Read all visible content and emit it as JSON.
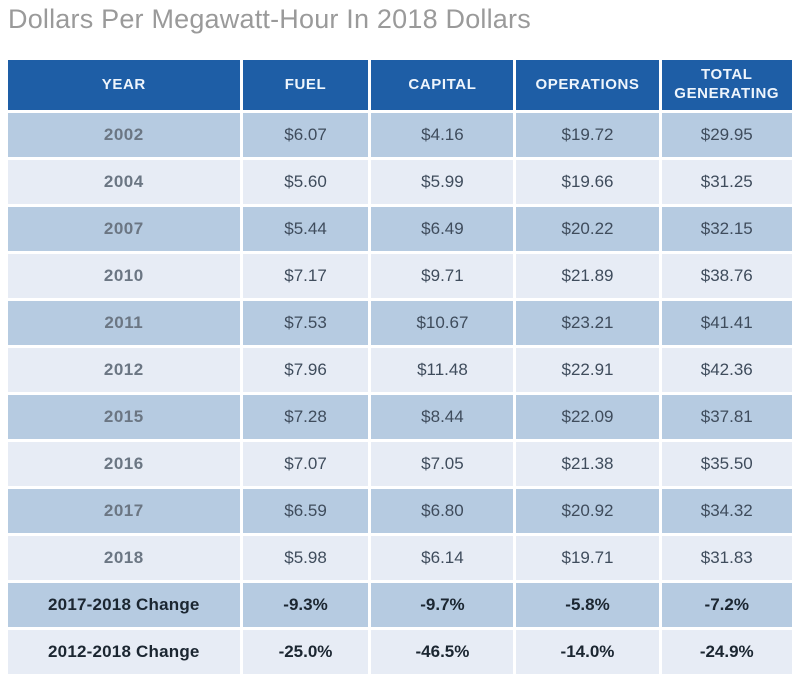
{
  "title": "Dollars Per Megawatt-Hour In 2018 Dollars",
  "colors": {
    "header_bg": "#1e5ea6",
    "header_text": "#eef5fc",
    "row_dark": "#b6cbe1",
    "row_light": "#e7ecf5",
    "value_text": "#3f4c5c",
    "year_text": "#6b7683",
    "change_text": "#1b2631",
    "title_text": "#9a9a9a"
  },
  "table": {
    "columns": [
      "YEAR",
      "FUEL",
      "CAPITAL",
      "OPERATIONS",
      "TOTAL GENERATING"
    ],
    "rows": [
      {
        "label": "2002",
        "values": [
          "$6.07",
          "$4.16",
          "$19.72",
          "$29.95"
        ],
        "is_change": false
      },
      {
        "label": "2004",
        "values": [
          "$5.60",
          "$5.99",
          "$19.66",
          "$31.25"
        ],
        "is_change": false
      },
      {
        "label": "2007",
        "values": [
          "$5.44",
          "$6.49",
          "$20.22",
          "$32.15"
        ],
        "is_change": false
      },
      {
        "label": "2010",
        "values": [
          "$7.17",
          "$9.71",
          "$21.89",
          "$38.76"
        ],
        "is_change": false
      },
      {
        "label": "2011",
        "values": [
          "$7.53",
          "$10.67",
          "$23.21",
          "$41.41"
        ],
        "is_change": false
      },
      {
        "label": "2012",
        "values": [
          "$7.96",
          "$11.48",
          "$22.91",
          "$42.36"
        ],
        "is_change": false
      },
      {
        "label": "2015",
        "values": [
          "$7.28",
          "$8.44",
          "$22.09",
          "$37.81"
        ],
        "is_change": false
      },
      {
        "label": "2016",
        "values": [
          "$7.07",
          "$7.05",
          "$21.38",
          "$35.50"
        ],
        "is_change": false
      },
      {
        "label": "2017",
        "values": [
          "$6.59",
          "$6.80",
          "$20.92",
          "$34.32"
        ],
        "is_change": false
      },
      {
        "label": "2018",
        "values": [
          "$5.98",
          "$6.14",
          "$19.71",
          "$31.83"
        ],
        "is_change": false
      },
      {
        "label": "2017-2018 Change",
        "values": [
          "-9.3%",
          "-9.7%",
          "-5.8%",
          "-7.2%"
        ],
        "is_change": true
      },
      {
        "label": "2012-2018 Change",
        "values": [
          "-25.0%",
          "-46.5%",
          "-14.0%",
          "-24.9%"
        ],
        "is_change": true
      }
    ]
  },
  "chart_data": {
    "type": "table",
    "title": "Dollars Per Megawatt-Hour In 2018 Dollars",
    "columns": [
      "YEAR",
      "FUEL",
      "CAPITAL",
      "OPERATIONS",
      "TOTAL GENERATING"
    ],
    "rows": [
      [
        "2002",
        "$6.07",
        "$4.16",
        "$19.72",
        "$29.95"
      ],
      [
        "2004",
        "$5.60",
        "$5.99",
        "$19.66",
        "$31.25"
      ],
      [
        "2007",
        "$5.44",
        "$6.49",
        "$20.22",
        "$32.15"
      ],
      [
        "2010",
        "$7.17",
        "$9.71",
        "$21.89",
        "$38.76"
      ],
      [
        "2011",
        "$7.53",
        "$10.67",
        "$23.21",
        "$41.41"
      ],
      [
        "2012",
        "$7.96",
        "$11.48",
        "$22.91",
        "$42.36"
      ],
      [
        "2015",
        "$7.28",
        "$8.44",
        "$22.09",
        "$37.81"
      ],
      [
        "2016",
        "$7.07",
        "$7.05",
        "$21.38",
        "$35.50"
      ],
      [
        "2017",
        "$6.59",
        "$6.80",
        "$20.92",
        "$34.32"
      ],
      [
        "2018",
        "$5.98",
        "$6.14",
        "$19.71",
        "$31.83"
      ],
      [
        "2017-2018 Change",
        "-9.3%",
        "-9.7%",
        "-5.8%",
        "-7.2%"
      ],
      [
        "2012-2018 Change",
        "-25.0%",
        "-46.5%",
        "-14.0%",
        "-24.9%"
      ]
    ]
  }
}
